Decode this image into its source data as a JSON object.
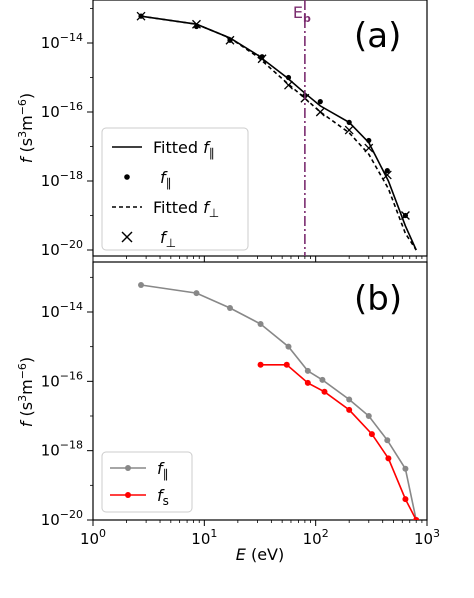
{
  "chart_data": [
    {
      "type": "line",
      "panel_label": "(a)",
      "xscale": "log",
      "yscale": "log",
      "xlim": [
        1,
        1000
      ],
      "ylim": [
        1e-20,
        1e-12
      ],
      "ylabel": "f (s³m⁻⁶)",
      "ylabel_parts": {
        "italic": "f",
        "text": " (s",
        "sup1": "3",
        "mid": "m",
        "sup2": "−6",
        "end": ")"
      },
      "y_ticks": [
        1e-20,
        1e-18,
        1e-16,
        1e-14
      ],
      "y_tick_labels": [
        {
          "base": "10",
          "exp": "−20"
        },
        {
          "base": "10",
          "exp": "−18"
        },
        {
          "base": "10",
          "exp": "−16"
        },
        {
          "base": "10",
          "exp": "−14"
        }
      ],
      "vline": {
        "x": 80,
        "label_main": "E",
        "label_sub": "b",
        "color": "#7b2d6f",
        "style": "dashdot"
      },
      "legend_placement": "lower-left",
      "series": [
        {
          "name": "Fitted f∥",
          "label_main": "Fitted ",
          "label_italic": "f",
          "label_sub": "∥",
          "style": "solid",
          "marker": "none",
          "color": "#000000",
          "x": [
            2.7,
            8.5,
            17,
            30,
            55,
            80,
            110,
            200,
            300,
            450,
            640,
            800
          ],
          "y": [
            6e-14,
            3.5e-14,
            1.4e-14,
            4.5e-15,
            1e-15,
            3.5e-16,
            1.5e-16,
            5e-17,
            1.3e-17,
            1e-18,
            5e-20,
            1e-20
          ]
        },
        {
          "name": "f∥",
          "label_main": "",
          "label_italic": "f",
          "label_sub": "∥",
          "style": "none",
          "marker": "dot",
          "color": "#000000",
          "x": [
            2.7,
            8.5,
            17,
            33,
            57,
            80,
            110,
            200,
            300,
            440,
            640
          ],
          "y": [
            6e-14,
            3e-14,
            1.2e-14,
            4e-15,
            1e-15,
            3e-16,
            2e-16,
            5e-17,
            1.5e-17,
            2e-18,
            1e-19
          ]
        },
        {
          "name": "Fitted f⊥",
          "label_main": "Fitted ",
          "label_italic": "f",
          "label_sub": "⊥",
          "style": "dashed",
          "marker": "none",
          "color": "#000000",
          "x": [
            2.7,
            8.5,
            17,
            30,
            55,
            80,
            110,
            200,
            300,
            450,
            640,
            800
          ],
          "y": [
            6e-14,
            3.5e-14,
            1.4e-14,
            4e-15,
            7e-16,
            2.5e-16,
            1e-16,
            2.5e-17,
            6e-18,
            6e-19,
            3e-20,
            1e-20
          ]
        },
        {
          "name": "f⊥",
          "label_main": "",
          "label_italic": "f",
          "label_sub": "⊥",
          "style": "none",
          "marker": "x",
          "color": "#000000",
          "x": [
            2.7,
            8.5,
            17,
            33,
            57,
            80,
            110,
            200,
            300,
            440,
            640
          ],
          "y": [
            6e-14,
            3.5e-14,
            1.2e-14,
            3.5e-15,
            6e-16,
            2.5e-16,
            1e-16,
            3e-17,
            9e-18,
            1.5e-18,
            1e-19
          ]
        }
      ]
    },
    {
      "type": "line",
      "panel_label": "(b)",
      "xscale": "log",
      "yscale": "log",
      "xlim": [
        1,
        1000
      ],
      "ylim": [
        1e-20,
        1e-12
      ],
      "xlabel": "E (eV)",
      "xlabel_parts": {
        "italic": "E",
        "text": " (eV)"
      },
      "ylabel": "f (s³m⁻⁶)",
      "ylabel_parts": {
        "italic": "f",
        "text": " (s",
        "sup1": "3",
        "mid": "m",
        "sup2": "−6",
        "end": ")"
      },
      "x_ticks": [
        1,
        10,
        100,
        1000
      ],
      "x_tick_labels": [
        {
          "base": "10",
          "exp": "0"
        },
        {
          "base": "10",
          "exp": "1"
        },
        {
          "base": "10",
          "exp": "2"
        },
        {
          "base": "10",
          "exp": "3"
        }
      ],
      "y_ticks": [
        1e-20,
        1e-18,
        1e-16,
        1e-14
      ],
      "y_tick_labels": [
        {
          "base": "10",
          "exp": "−20"
        },
        {
          "base": "10",
          "exp": "−18"
        },
        {
          "base": "10",
          "exp": "−16"
        },
        {
          "base": "10",
          "exp": "−14"
        }
      ],
      "legend_placement": "lower-left",
      "series": [
        {
          "name": "f∥",
          "label_main": "",
          "label_italic": "f",
          "label_sub": "∥",
          "style": "solid",
          "marker": "dot",
          "color": "#888888",
          "x": [
            2.7,
            8.5,
            17,
            32,
            57,
            85,
            115,
            200,
            300,
            440,
            640,
            800
          ],
          "y": [
            6e-14,
            3.5e-14,
            1.3e-14,
            4.5e-15,
            1e-15,
            2e-16,
            1.1e-16,
            3e-17,
            1e-17,
            2e-18,
            3e-19,
            1e-20
          ]
        },
        {
          "name": "fs",
          "label_main": "",
          "label_italic": "f",
          "label_sub": "s",
          "style": "solid",
          "marker": "dot",
          "color": "#ff0000",
          "x": [
            32,
            55,
            85,
            120,
            200,
            320,
            450,
            640,
            800
          ],
          "y": [
            3e-16,
            3e-16,
            9e-17,
            5e-17,
            1.5e-17,
            3e-18,
            6e-19,
            4e-20,
            1e-20
          ]
        }
      ]
    }
  ]
}
